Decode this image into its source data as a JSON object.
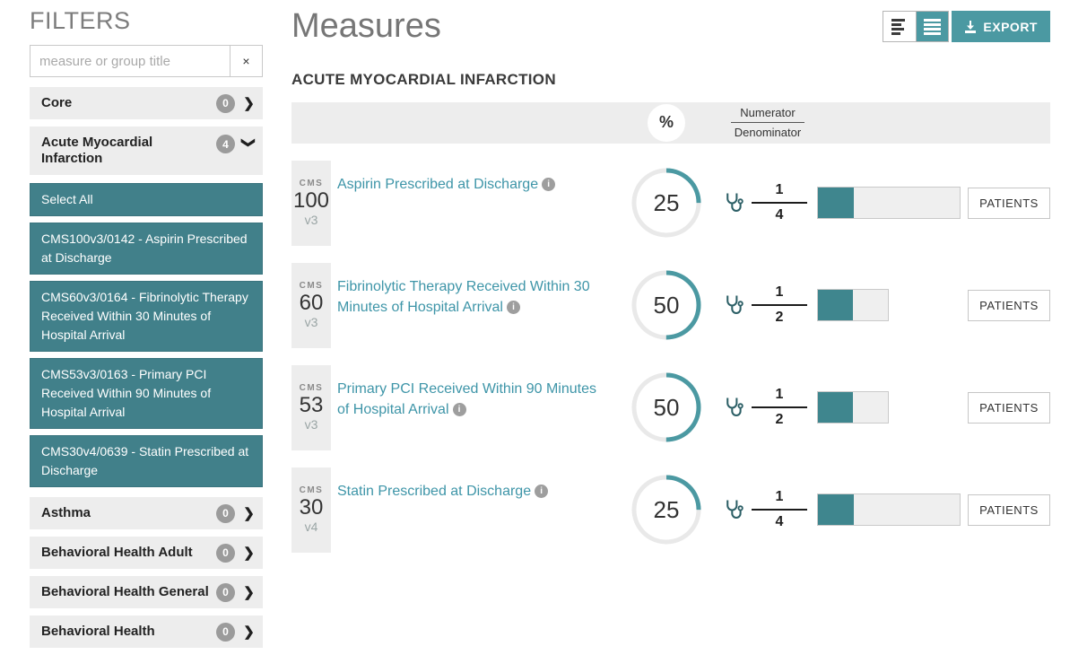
{
  "colors": {
    "accent": "#4B99A2",
    "sidebar_selected": "#41808A",
    "bar_fill": "#3F868E",
    "measure_link": "#3E95A8",
    "badge_gray": "#9b9b9b"
  },
  "icons": {
    "clear": "×",
    "chevron_right": "❯",
    "chevron_down": "❯",
    "info": "i",
    "percent": "%"
  },
  "sidebar": {
    "title": "FILTERS",
    "search": {
      "placeholder": "measure or group title",
      "value": ""
    },
    "groups_top": [
      {
        "label": "Core",
        "count": "0"
      },
      {
        "label": "Acute Myocardial Infarction",
        "count": "4"
      }
    ],
    "select_all_label": "Select All",
    "selected_items": [
      "CMS100v3/0142 - Aspirin Prescribed at Discharge",
      "CMS60v3/0164 - Fibrinolytic Therapy Received Within 30 Minutes of Hospital Arrival",
      "CMS53v3/0163 - Primary PCI Received Within 90 Minutes of Hospital Arrival",
      "CMS30v4/0639 - Statin Prescribed at Discharge"
    ],
    "groups_bottom": [
      {
        "label": "Asthma",
        "count": "0"
      },
      {
        "label": "Behavioral Health Adult",
        "count": "0"
      },
      {
        "label": "Behavioral Health General",
        "count": "0"
      },
      {
        "label": "Behavioral Health",
        "count": "0"
      }
    ]
  },
  "main": {
    "title": "Measures",
    "toolbar": {
      "export_label": "EXPORT"
    },
    "section_title": "ACUTE MYOCARDIAL INFARCTION",
    "table_header": {
      "percent": "%",
      "numerator": "Numerator",
      "denominator": "Denominator"
    },
    "measures": [
      {
        "cms_prefix": "CMS",
        "cms_number": "100",
        "version": "v3",
        "title": "Aspirin Prescribed at Discharge",
        "percent": 25,
        "numerator": 1,
        "denominator": 4,
        "patients_label": "PATIENTS"
      },
      {
        "cms_prefix": "CMS",
        "cms_number": "60",
        "version": "v3",
        "title": "Fibrinolytic Therapy Received Within 30 Minutes of Hospital Arrival",
        "percent": 50,
        "numerator": 1,
        "denominator": 2,
        "patients_label": "PATIENTS"
      },
      {
        "cms_prefix": "CMS",
        "cms_number": "53",
        "version": "v3",
        "title": "Primary PCI Received Within 90 Minutes of Hospital Arrival",
        "percent": 50,
        "numerator": 1,
        "denominator": 2,
        "patients_label": "PATIENTS"
      },
      {
        "cms_prefix": "CMS",
        "cms_number": "30",
        "version": "v4",
        "title": "Statin Prescribed at Discharge",
        "percent": 25,
        "numerator": 1,
        "denominator": 4,
        "patients_label": "PATIENTS"
      }
    ]
  }
}
